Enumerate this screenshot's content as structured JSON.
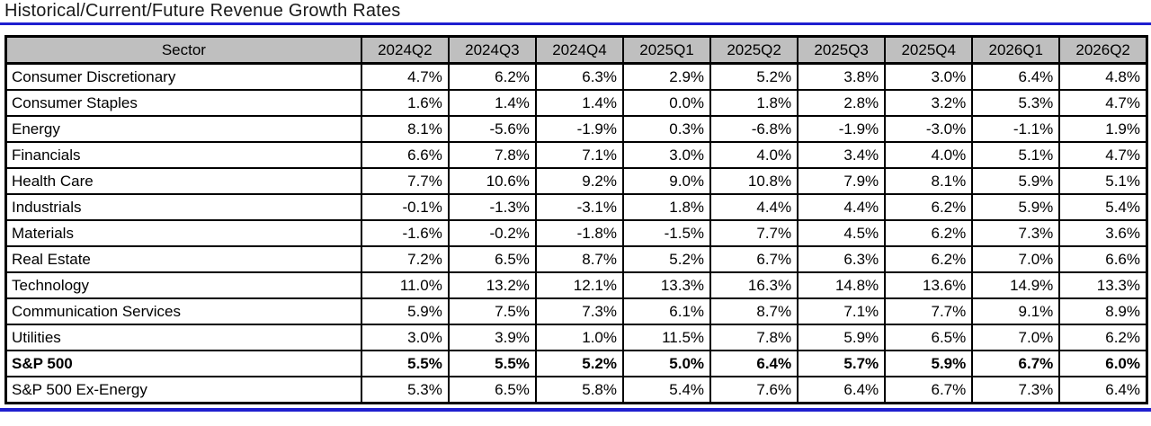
{
  "title": "Historical/Current/Future Revenue Growth Rates",
  "colors": {
    "accent_blue": "#1e1ecf",
    "header_bg": "#bfbfbf",
    "grid_border": "#000000"
  },
  "table": {
    "sector_header": "Sector",
    "quarter_headers": [
      "2024Q2",
      "2024Q3",
      "2024Q4",
      "2025Q1",
      "2025Q2",
      "2025Q3",
      "2025Q4",
      "2026Q1",
      "2026Q2"
    ],
    "rows": [
      {
        "sector": "Consumer Discretionary",
        "bold": false,
        "values": [
          "4.7%",
          "6.2%",
          "6.3%",
          "2.9%",
          "5.2%",
          "3.8%",
          "3.0%",
          "6.4%",
          "4.8%"
        ]
      },
      {
        "sector": "Consumer Staples",
        "bold": false,
        "values": [
          "1.6%",
          "1.4%",
          "1.4%",
          "0.0%",
          "1.8%",
          "2.8%",
          "3.2%",
          "5.3%",
          "4.7%"
        ]
      },
      {
        "sector": "Energy",
        "bold": false,
        "values": [
          "8.1%",
          "-5.6%",
          "-1.9%",
          "0.3%",
          "-6.8%",
          "-1.9%",
          "-3.0%",
          "-1.1%",
          "1.9%"
        ]
      },
      {
        "sector": "Financials",
        "bold": false,
        "values": [
          "6.6%",
          "7.8%",
          "7.1%",
          "3.0%",
          "4.0%",
          "3.4%",
          "4.0%",
          "5.1%",
          "4.7%"
        ]
      },
      {
        "sector": "Health Care",
        "bold": false,
        "values": [
          "7.7%",
          "10.6%",
          "9.2%",
          "9.0%",
          "10.8%",
          "7.9%",
          "8.1%",
          "5.9%",
          "5.1%"
        ]
      },
      {
        "sector": "Industrials",
        "bold": false,
        "values": [
          "-0.1%",
          "-1.3%",
          "-3.1%",
          "1.8%",
          "4.4%",
          "4.4%",
          "6.2%",
          "5.9%",
          "5.4%"
        ]
      },
      {
        "sector": "Materials",
        "bold": false,
        "values": [
          "-1.6%",
          "-0.2%",
          "-1.8%",
          "-1.5%",
          "7.7%",
          "4.5%",
          "6.2%",
          "7.3%",
          "3.6%"
        ]
      },
      {
        "sector": "Real Estate",
        "bold": false,
        "values": [
          "7.2%",
          "6.5%",
          "8.7%",
          "5.2%",
          "6.7%",
          "6.3%",
          "6.2%",
          "7.0%",
          "6.6%"
        ]
      },
      {
        "sector": "Technology",
        "bold": false,
        "values": [
          "11.0%",
          "13.2%",
          "12.1%",
          "13.3%",
          "16.3%",
          "14.8%",
          "13.6%",
          "14.9%",
          "13.3%"
        ]
      },
      {
        "sector": "Communication Services",
        "bold": false,
        "values": [
          "5.9%",
          "7.5%",
          "7.3%",
          "6.1%",
          "8.7%",
          "7.1%",
          "7.7%",
          "9.1%",
          "8.9%"
        ]
      },
      {
        "sector": "Utilities",
        "bold": false,
        "values": [
          "3.0%",
          "3.9%",
          "1.0%",
          "11.5%",
          "7.8%",
          "5.9%",
          "6.5%",
          "7.0%",
          "6.2%"
        ]
      },
      {
        "sector": "S&P 500",
        "bold": true,
        "values": [
          "5.5%",
          "5.5%",
          "5.2%",
          "5.0%",
          "6.4%",
          "5.7%",
          "5.9%",
          "6.7%",
          "6.0%"
        ]
      },
      {
        "sector": "S&P 500 Ex-Energy",
        "bold": false,
        "values": [
          "5.3%",
          "6.5%",
          "5.8%",
          "5.4%",
          "7.6%",
          "6.4%",
          "6.7%",
          "7.3%",
          "6.4%"
        ]
      }
    ]
  },
  "chart_data": {
    "type": "table",
    "title": "Historical/Current/Future Revenue Growth Rates",
    "categories": [
      "2024Q2",
      "2024Q3",
      "2024Q4",
      "2025Q1",
      "2025Q2",
      "2025Q3",
      "2025Q4",
      "2026Q1",
      "2026Q2"
    ],
    "unit": "%",
    "series": [
      {
        "name": "Consumer Discretionary",
        "values": [
          4.7,
          6.2,
          6.3,
          2.9,
          5.2,
          3.8,
          3.0,
          6.4,
          4.8
        ]
      },
      {
        "name": "Consumer Staples",
        "values": [
          1.6,
          1.4,
          1.4,
          0.0,
          1.8,
          2.8,
          3.2,
          5.3,
          4.7
        ]
      },
      {
        "name": "Energy",
        "values": [
          8.1,
          -5.6,
          -1.9,
          0.3,
          -6.8,
          -1.9,
          -3.0,
          -1.1,
          1.9
        ]
      },
      {
        "name": "Financials",
        "values": [
          6.6,
          7.8,
          7.1,
          3.0,
          4.0,
          3.4,
          4.0,
          5.1,
          4.7
        ]
      },
      {
        "name": "Health Care",
        "values": [
          7.7,
          10.6,
          9.2,
          9.0,
          10.8,
          7.9,
          8.1,
          5.9,
          5.1
        ]
      },
      {
        "name": "Industrials",
        "values": [
          -0.1,
          -1.3,
          -3.1,
          1.8,
          4.4,
          4.4,
          6.2,
          5.9,
          5.4
        ]
      },
      {
        "name": "Materials",
        "values": [
          -1.6,
          -0.2,
          -1.8,
          -1.5,
          7.7,
          4.5,
          6.2,
          7.3,
          3.6
        ]
      },
      {
        "name": "Real Estate",
        "values": [
          7.2,
          6.5,
          8.7,
          5.2,
          6.7,
          6.3,
          6.2,
          7.0,
          6.6
        ]
      },
      {
        "name": "Technology",
        "values": [
          11.0,
          13.2,
          12.1,
          13.3,
          16.3,
          14.8,
          13.6,
          14.9,
          13.3
        ]
      },
      {
        "name": "Communication Services",
        "values": [
          5.9,
          7.5,
          7.3,
          6.1,
          8.7,
          7.1,
          7.7,
          9.1,
          8.9
        ]
      },
      {
        "name": "Utilities",
        "values": [
          3.0,
          3.9,
          1.0,
          11.5,
          7.8,
          5.9,
          6.5,
          7.0,
          6.2
        ]
      },
      {
        "name": "S&P 500",
        "values": [
          5.5,
          5.5,
          5.2,
          5.0,
          6.4,
          5.7,
          5.9,
          6.7,
          6.0
        ]
      },
      {
        "name": "S&P 500 Ex-Energy",
        "values": [
          5.3,
          6.5,
          5.8,
          5.4,
          7.6,
          6.4,
          6.7,
          7.3,
          6.4
        ]
      }
    ]
  }
}
